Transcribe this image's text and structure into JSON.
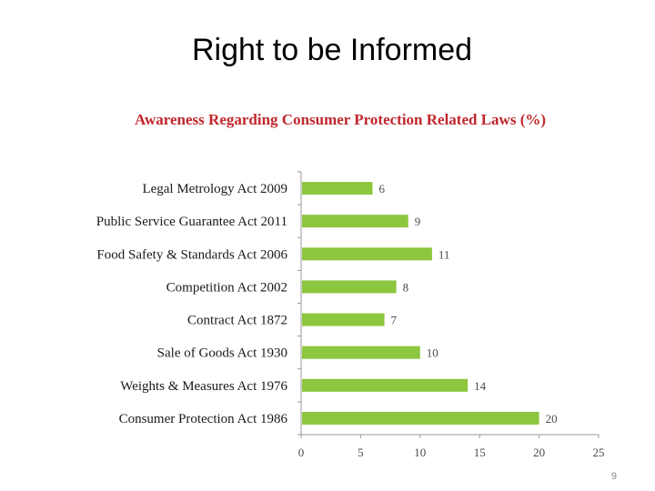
{
  "slide": {
    "title": "Right to be Informed",
    "page_number": "9"
  },
  "colors": {
    "bar": "#8dc63f",
    "chart_title": "#c0272d",
    "axis": "#9a9a9a"
  },
  "chart_data": {
    "type": "bar",
    "orientation": "horizontal",
    "title": "Awareness Regarding Consumer Protection Related Laws (%)",
    "categories": [
      "Legal Metrology Act 2009",
      "Public Service Guarantee Act 2011",
      "Food Safety & Standards Act 2006",
      "Competition Act 2002",
      "Contract Act 1872",
      "Sale of Goods Act 1930",
      "Weights & Measures Act 1976",
      "Consumer Protection Act 1986"
    ],
    "values": [
      6,
      9,
      11,
      8,
      7,
      10,
      14,
      20
    ],
    "xlim": [
      0,
      25
    ],
    "xticks": [
      0,
      5,
      10,
      15,
      20,
      25
    ],
    "grid": false,
    "legend": "none",
    "data_labels": true
  }
}
